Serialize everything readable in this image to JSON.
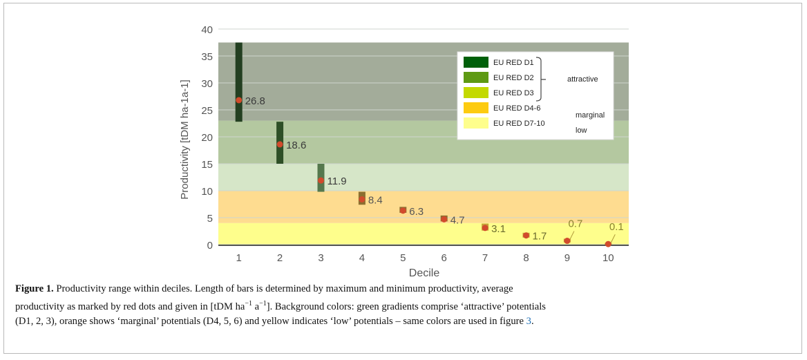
{
  "colors": {
    "attractive_d1_band": "#a3ac9a",
    "attractive_d2_band": "#b4c8a0",
    "attractive_d3_band": "#d6e6c8",
    "marginal_band": "#fedc90",
    "low_band": "#fefe8c",
    "bar_d1": "#233f21",
    "bar_d2": "#2e4f27",
    "bar_d3": "#55784d",
    "bar_marginal": "#8c6e30",
    "bar_low": "#c6a23a",
    "mean_dot": "#d14b2c",
    "legend_d1": "#00600a",
    "legend_d2": "#5e9a13",
    "legend_d3": "#c3d900",
    "legend_d46": "#fdcb10",
    "legend_d710": "#fefe8c",
    "grid": "#cfd6cf"
  },
  "legend": {
    "items": [
      {
        "label": "EU RED D1",
        "color": "#00600a"
      },
      {
        "label": "EU RED D2",
        "color": "#5e9a13"
      },
      {
        "label": "EU RED D3",
        "color": "#c3d900"
      },
      {
        "label": "EU RED D4-6",
        "color": "#fdcb10"
      },
      {
        "label": "EU RED D7-10",
        "color": "#fefe8c"
      }
    ],
    "group_labels": {
      "attractive": "attractive",
      "marginal": "marginal",
      "low": "low"
    }
  },
  "chart_data": {
    "type": "bar",
    "bar_style": "floating range bars with mean markers",
    "xlabel": "Decile",
    "ylabel": "Productivity [tDM ha-1a-1]",
    "ylim": [
      0,
      40
    ],
    "yticks": [
      0,
      5,
      10,
      15,
      20,
      25,
      30,
      35,
      40
    ],
    "categories": [
      "1",
      "2",
      "3",
      "4",
      "5",
      "6",
      "7",
      "8",
      "9",
      "10"
    ],
    "series": [
      {
        "min": [
          22.8,
          15.0,
          9.8,
          7.4,
          5.9,
          4.3,
          2.6,
          1.3,
          0.4,
          0.0
        ],
        "max": [
          37.5,
          22.8,
          15.0,
          9.8,
          7.0,
          5.4,
          3.9,
          2.2,
          1.1,
          0.3
        ],
        "mean": [
          26.8,
          18.6,
          11.9,
          8.4,
          6.3,
          4.7,
          3.1,
          1.7,
          0.7,
          0.1
        ]
      }
    ],
    "mean_labels": [
      "26.8",
      "18.6",
      "11.9",
      "8.4",
      "6.3",
      "4.7",
      "3.1",
      "1.7",
      "0.7",
      "0.1"
    ],
    "background_bands": [
      {
        "from": 0,
        "to": 4,
        "color": "#fefe8c"
      },
      {
        "from": 4,
        "to": 10,
        "color": "#fedc90"
      },
      {
        "from": 10,
        "to": 15,
        "color": "#d6e6c8"
      },
      {
        "from": 15,
        "to": 23,
        "color": "#b4c8a0"
      },
      {
        "from": 23,
        "to": 37.5,
        "color": "#a3ac9a"
      }
    ],
    "grid": true,
    "legend_position": "top-right"
  },
  "caption": {
    "lead": "Figure 1.",
    "line1": "Productivity range within deciles. Length of bars is determined by maximum and minimum productivity, average",
    "line2_before": "productivity as marked by red dots and given in [tDM ha",
    "line2_sup1": "−1",
    "line2_mid": " a",
    "line2_sup2": "−1",
    "line2_after": "]. Background colors: green gradients comprise ‘attractive’ potentials",
    "line3": "(D1, 2, 3), orange shows ‘marginal’ potentials (D4, 5, 6) and yellow indicates ‘low’ potentials – same colors are used in figure ",
    "figure_ref": "3",
    "period": "."
  }
}
